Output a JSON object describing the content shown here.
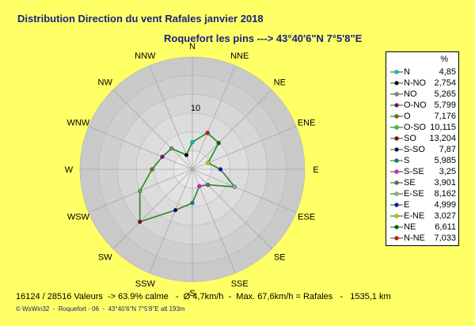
{
  "title": "Distribution Direction du vent Rafales  janvier 2018",
  "subtitle": "Roquefort les pins    --->  43°40'6\"N 7°5'8\"E",
  "footer": "16124 / 28516 Valeurs  -> 63.9% calme   -  Ø 4,7km/h  -  Max. 67,6km/h = Rafales   -   1535,1 km",
  "credit": "© WsWin32  -  Roquefort - 06  -  43°40'6\"N 7°5'8\"E alt 193m",
  "legend_header": "%",
  "chart_data": {
    "type": "radar",
    "title": "Distribution Direction du vent Rafales  janvier 2018",
    "ring_label": "10",
    "rmax": 20,
    "directions": [
      "N",
      "NNE",
      "NE",
      "ENE",
      "E",
      "ESE",
      "SE",
      "SSE",
      "S",
      "SSW",
      "SW",
      "WSW",
      "W",
      "WNW",
      "NW",
      "NNW"
    ],
    "series": [
      {
        "name": "N",
        "value": 4.85,
        "dir": "N",
        "color": "#00cccc"
      },
      {
        "name": "N-NO",
        "value": 2.754,
        "dir": "NNW",
        "color": "#000000"
      },
      {
        "name": "NO",
        "value": 5.265,
        "dir": "NW",
        "color": "#888888"
      },
      {
        "name": "O-NO",
        "value": 5.799,
        "dir": "WNW",
        "color": "#880088"
      },
      {
        "name": "O",
        "value": 7.176,
        "dir": "W",
        "color": "#886600"
      },
      {
        "name": "O-SO",
        "value": 10.115,
        "dir": "WSW",
        "color": "#33cc33"
      },
      {
        "name": "SO",
        "value": 13.204,
        "dir": "SW",
        "color": "#880000"
      },
      {
        "name": "S-SO",
        "value": 7.87,
        "dir": "SSW",
        "color": "#000088"
      },
      {
        "name": "S",
        "value": 5.985,
        "dir": "S",
        "color": "#008888"
      },
      {
        "name": "S-SE",
        "value": 3.25,
        "dir": "SSE",
        "color": "#ff00ff"
      },
      {
        "name": "SE",
        "value": 3.901,
        "dir": "SE",
        "color": "#666666"
      },
      {
        "name": "E-SE",
        "value": 8.162,
        "dir": "ESE",
        "color": "#aaaaaa"
      },
      {
        "name": "E",
        "value": 4.999,
        "dir": "E",
        "color": "#0000cc"
      },
      {
        "name": "E-NE",
        "value": 3.027,
        "dir": "ENE",
        "color": "#cccc00"
      },
      {
        "name": "NE",
        "value": 6.611,
        "dir": "NE",
        "color": "#006600"
      },
      {
        "name": "N-NE",
        "value": 7.033,
        "dir": "NNE",
        "color": "#ee0000"
      }
    ],
    "line_color": "#228b22"
  }
}
